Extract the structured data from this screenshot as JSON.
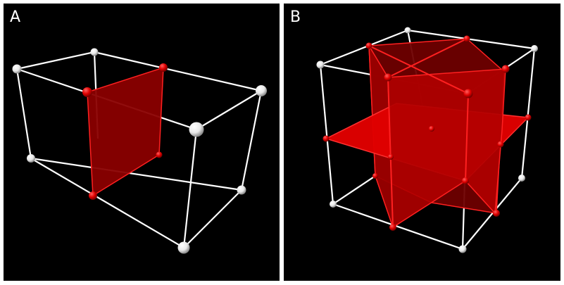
{
  "panels": [
    {
      "id": "a",
      "label": "A"
    },
    {
      "id": "b",
      "label": "B"
    }
  ],
  "colors": {
    "background": "#000000",
    "frame": "#ffffff",
    "edge": "#ffffff",
    "plane_fill": "#c00000",
    "plane_fill_light": "#e00000",
    "plane_edge": "#ff2020",
    "node_white": "#ffffff",
    "node_red": "#e00000"
  }
}
